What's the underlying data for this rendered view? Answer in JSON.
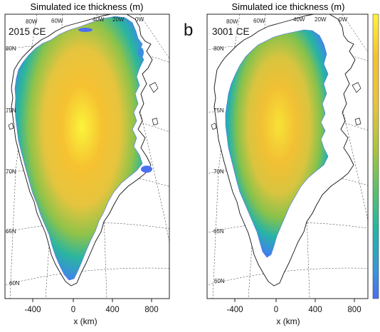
{
  "figure": {
    "panel_letter_b": "b",
    "colorbar_colors": [
      "#fbf43a",
      "#f6c231",
      "#e8c43d",
      "#a8c43f",
      "#5cbf6e",
      "#22b6a6",
      "#3a96d8",
      "#4a6ff0"
    ]
  },
  "panels": [
    {
      "title": "Simulated ice thickness (m)",
      "year_label": "2015 CE",
      "xlabel": "x (km)",
      "xticks": [
        "-400",
        "0",
        "400",
        "800"
      ],
      "lat_labels": [
        "80N",
        "75N",
        "70N",
        "65N",
        "60N"
      ],
      "lon_labels": [
        "80W",
        "60W",
        "40W",
        "20W",
        "0W"
      ]
    },
    {
      "title": "Simulated ice thickness (m)",
      "year_label": "3001 CE",
      "xlabel": "x (km)",
      "xticks": [
        "-400",
        "0",
        "400",
        "800"
      ],
      "lat_labels": [
        "80N",
        "75N",
        "70N",
        "65N",
        "60N"
      ],
      "lon_labels": [
        "80W",
        "60W",
        "40W",
        "20W",
        "0W"
      ]
    }
  ]
}
